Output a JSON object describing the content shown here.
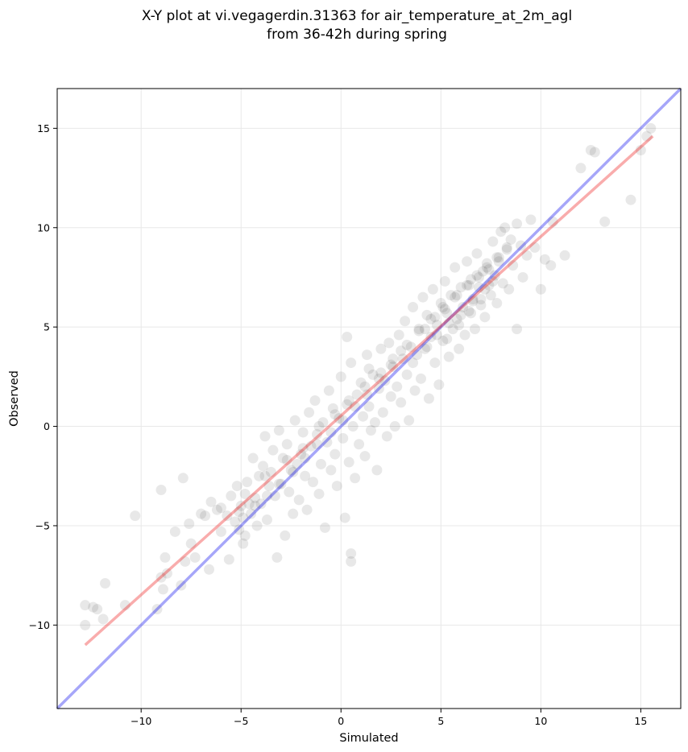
{
  "chart_data": {
    "type": "scatter",
    "title_lines": [
      "X-Y plot at vi.vegagerdin.31363 for air_temperature_at_2m_agl",
      "from 36-42h during spring"
    ],
    "xlabel": "Simulated",
    "ylabel": "Observed",
    "xlim": [
      -14.2,
      17.0
    ],
    "ylim": [
      -14.2,
      17.0
    ],
    "xticks": [
      -10,
      -5,
      0,
      5,
      10,
      15
    ],
    "yticks": [
      -10,
      -5,
      0,
      5,
      10,
      15
    ],
    "xtick_labels": [
      "−10",
      "−5",
      "0",
      "5",
      "10",
      "15"
    ],
    "ytick_labels": [
      "−10",
      "−5",
      "0",
      "5",
      "10",
      "15"
    ],
    "grid": true,
    "colors": {
      "points": "#000000",
      "identity_line": "#0000ee",
      "fit_line": "#ee1111"
    },
    "identity_line": {
      "from": [
        -14.2,
        -14.2
      ],
      "to": [
        17.0,
        17.0
      ]
    },
    "fit_line": {
      "from": [
        -12.8,
        -11.0
      ],
      "to": [
        15.6,
        14.6
      ]
    },
    "points": [
      [
        -12.8,
        -9.0
      ],
      [
        -12.4,
        -9.1
      ],
      [
        -12.2,
        -9.2
      ],
      [
        -11.9,
        -9.7
      ],
      [
        -11.8,
        -7.9
      ],
      [
        -12.8,
        -10.0
      ],
      [
        -10.8,
        -9.0
      ],
      [
        -10.3,
        -4.5
      ],
      [
        -9.2,
        -9.2
      ],
      [
        -9.0,
        -3.2
      ],
      [
        -8.8,
        -6.6
      ],
      [
        -8.7,
        -7.4
      ],
      [
        -9.0,
        -7.6
      ],
      [
        -8.9,
        -8.2
      ],
      [
        -8.3,
        -5.3
      ],
      [
        -8.0,
        -8.0
      ],
      [
        -7.9,
        -2.6
      ],
      [
        -7.8,
        -6.8
      ],
      [
        -7.5,
        -5.9
      ],
      [
        -7.3,
        -6.6
      ],
      [
        -7.0,
        -4.4
      ],
      [
        -6.8,
        -4.5
      ],
      [
        -6.6,
        -7.2
      ],
      [
        -6.5,
        -3.8
      ],
      [
        -6.2,
        -4.2
      ],
      [
        -6.0,
        -5.3
      ],
      [
        -5.7,
        -4.5
      ],
      [
        -5.6,
        -6.7
      ],
      [
        -5.5,
        -3.5
      ],
      [
        -5.3,
        -4.8
      ],
      [
        -5.2,
        -3.0
      ],
      [
        -5.1,
        -5.2
      ],
      [
        -5.0,
        -4.0
      ],
      [
        -4.9,
        -5.9
      ],
      [
        -4.8,
        -3.4
      ],
      [
        -4.7,
        -2.8
      ],
      [
        -4.5,
        -4.4
      ],
      [
        -4.4,
        -1.6
      ],
      [
        -4.3,
        -3.6
      ],
      [
        -4.2,
        -5.0
      ],
      [
        -4.1,
        -2.5
      ],
      [
        -4.0,
        -3.9
      ],
      [
        -3.9,
        -2.0
      ],
      [
        -3.8,
        -0.5
      ],
      [
        -3.7,
        -4.7
      ],
      [
        -3.6,
        -3.0
      ],
      [
        -3.5,
        -2.3
      ],
      [
        -3.4,
        -1.2
      ],
      [
        -3.3,
        -3.5
      ],
      [
        -3.2,
        -6.6
      ],
      [
        -3.1,
        -0.2
      ],
      [
        -3.0,
        -2.9
      ],
      [
        -2.9,
        -1.6
      ],
      [
        -2.8,
        -5.5
      ],
      [
        -2.7,
        -0.9
      ],
      [
        -2.6,
        -3.3
      ],
      [
        -2.5,
        -2.2
      ],
      [
        -2.4,
        -4.4
      ],
      [
        -2.3,
        0.3
      ],
      [
        -2.2,
        -1.9
      ],
      [
        -2.1,
        -3.7
      ],
      [
        -2.0,
        -1.4
      ],
      [
        -1.9,
        -0.3
      ],
      [
        -1.8,
        -2.5
      ],
      [
        -1.7,
        -4.2
      ],
      [
        -1.6,
        0.7
      ],
      [
        -1.5,
        -1.0
      ],
      [
        -1.4,
        -2.8
      ],
      [
        -1.3,
        1.3
      ],
      [
        -1.2,
        -0.4
      ],
      [
        -1.1,
        -3.4
      ],
      [
        -1.0,
        -1.9
      ],
      [
        -0.9,
        0.2
      ],
      [
        -0.8,
        -5.1
      ],
      [
        -0.7,
        -0.8
      ],
      [
        -0.6,
        1.8
      ],
      [
        -0.5,
        -2.2
      ],
      [
        -0.4,
        0.9
      ],
      [
        -0.3,
        -1.4
      ],
      [
        -0.2,
        -3.0
      ],
      [
        -0.1,
        0.4
      ],
      [
        0.0,
        2.5
      ],
      [
        0.1,
        -0.6
      ],
      [
        0.2,
        -4.6
      ],
      [
        0.3,
        1.1
      ],
      [
        0.4,
        -1.8
      ],
      [
        0.5,
        3.2
      ],
      [
        0.6,
        0.0
      ],
      [
        0.7,
        -2.6
      ],
      [
        0.8,
        1.6
      ],
      [
        0.9,
        -0.9
      ],
      [
        1.0,
        2.2
      ],
      [
        1.1,
        0.5
      ],
      [
        1.2,
        -1.5
      ],
      [
        1.3,
        3.6
      ],
      [
        1.4,
        1.0
      ],
      [
        1.5,
        -0.2
      ],
      [
        1.6,
        2.6
      ],
      [
        1.7,
        0.2
      ],
      [
        1.8,
        -2.2
      ],
      [
        1.9,
        1.9
      ],
      [
        2.0,
        3.9
      ],
      [
        2.1,
        0.7
      ],
      [
        2.2,
        2.3
      ],
      [
        2.3,
        -0.5
      ],
      [
        2.4,
        4.2
      ],
      [
        2.5,
        1.5
      ],
      [
        2.6,
        3.0
      ],
      [
        2.7,
        0.0
      ],
      [
        2.8,
        2.0
      ],
      [
        2.9,
        4.6
      ],
      [
        3.0,
        1.2
      ],
      [
        3.1,
        3.4
      ],
      [
        3.2,
        5.3
      ],
      [
        3.3,
        2.6
      ],
      [
        3.4,
        0.3
      ],
      [
        3.5,
        4.0
      ],
      [
        3.6,
        6.0
      ],
      [
        3.7,
        1.8
      ],
      [
        3.8,
        3.6
      ],
      [
        3.9,
        4.9
      ],
      [
        4.0,
        2.4
      ],
      [
        4.1,
        6.5
      ],
      [
        4.2,
        3.9
      ],
      [
        4.3,
        5.6
      ],
      [
        4.4,
        1.4
      ],
      [
        4.5,
        4.5
      ],
      [
        4.6,
        6.9
      ],
      [
        4.7,
        3.2
      ],
      [
        4.8,
        5.1
      ],
      [
        4.9,
        2.1
      ],
      [
        5.0,
        6.2
      ],
      [
        5.1,
        4.3
      ],
      [
        5.2,
        7.3
      ],
      [
        5.3,
        5.7
      ],
      [
        5.4,
        3.5
      ],
      [
        5.5,
        6.6
      ],
      [
        5.6,
        4.9
      ],
      [
        5.7,
        8.0
      ],
      [
        5.8,
        5.4
      ],
      [
        5.9,
        3.9
      ],
      [
        6.0,
        7.0
      ],
      [
        6.1,
        6.0
      ],
      [
        6.2,
        4.6
      ],
      [
        6.3,
        8.3
      ],
      [
        6.4,
        5.8
      ],
      [
        6.5,
        7.4
      ],
      [
        6.6,
        6.4
      ],
      [
        6.7,
        4.9
      ],
      [
        6.8,
        8.7
      ],
      [
        6.9,
        7.0
      ],
      [
        7.0,
        6.1
      ],
      [
        7.1,
        7.8
      ],
      [
        7.2,
        5.5
      ],
      [
        7.3,
        8.2
      ],
      [
        7.4,
        7.1
      ],
      [
        7.5,
        6.6
      ],
      [
        7.6,
        9.3
      ],
      [
        7.7,
        7.6
      ],
      [
        7.8,
        6.2
      ],
      [
        7.9,
        8.5
      ],
      [
        8.0,
        9.8
      ],
      [
        8.1,
        7.2
      ],
      [
        8.2,
        10.0
      ],
      [
        8.3,
        8.9
      ],
      [
        8.4,
        6.9
      ],
      [
        8.5,
        9.4
      ],
      [
        8.6,
        8.1
      ],
      [
        8.8,
        10.2
      ],
      [
        8.8,
        4.9
      ],
      [
        9.0,
        9.1
      ],
      [
        9.1,
        7.5
      ],
      [
        9.3,
        8.6
      ],
      [
        9.5,
        10.4
      ],
      [
        9.7,
        9.0
      ],
      [
        10.0,
        6.9
      ],
      [
        10.2,
        8.4
      ],
      [
        10.5,
        8.1
      ],
      [
        10.6,
        10.3
      ],
      [
        11.2,
        8.6
      ],
      [
        12.0,
        13.0
      ],
      [
        12.5,
        13.9
      ],
      [
        12.7,
        13.8
      ],
      [
        13.2,
        10.3
      ],
      [
        14.5,
        11.4
      ],
      [
        15.0,
        13.9
      ],
      [
        15.3,
        14.6
      ],
      [
        15.5,
        15.0
      ],
      [
        1.4,
        2.9
      ],
      [
        0.3,
        4.5
      ],
      [
        0.5,
        -6.8
      ],
      [
        0.5,
        -6.4
      ],
      [
        -4.8,
        -5.5
      ],
      [
        -6.0,
        -4.1
      ],
      [
        -7.6,
        -4.9
      ],
      [
        -5.1,
        -4.3
      ],
      [
        -4.6,
        -3.9
      ],
      [
        -3.8,
        -2.5
      ],
      [
        -2.7,
        -1.7
      ],
      [
        -1.9,
        -1.1
      ],
      [
        -1.1,
        0.0
      ],
      [
        -0.3,
        0.6
      ],
      [
        0.4,
        1.3
      ],
      [
        1.2,
        2.0
      ],
      [
        2.0,
        2.7
      ],
      [
        2.6,
        3.4
      ],
      [
        3.3,
        4.1
      ],
      [
        3.9,
        4.8
      ],
      [
        4.5,
        5.4
      ],
      [
        5.1,
        6.0
      ],
      [
        5.7,
        6.5
      ],
      [
        6.3,
        7.1
      ],
      [
        6.8,
        7.6
      ],
      [
        7.3,
        8.0
      ],
      [
        7.8,
        8.5
      ],
      [
        8.3,
        9.0
      ],
      [
        3.6,
        3.2
      ],
      [
        4.3,
        4.0
      ],
      [
        4.8,
        4.6
      ],
      [
        5.4,
        5.2
      ],
      [
        6.0,
        5.6
      ],
      [
        6.6,
        6.3
      ],
      [
        7.2,
        6.9
      ],
      [
        7.6,
        7.3
      ],
      [
        5.3,
        4.4
      ],
      [
        5.9,
        5.1
      ],
      [
        6.5,
        5.7
      ],
      [
        7.0,
        6.4
      ],
      [
        4.2,
        4.9
      ],
      [
        4.7,
        5.5
      ],
      [
        5.2,
        5.9
      ],
      [
        5.8,
        6.6
      ],
      [
        6.4,
        7.1
      ],
      [
        6.9,
        7.5
      ],
      [
        7.4,
        7.9
      ],
      [
        7.9,
        8.3
      ],
      [
        3.0,
        3.8
      ],
      [
        2.5,
        3.1
      ],
      [
        1.9,
        2.4
      ],
      [
        1.3,
        1.6
      ],
      [
        0.7,
        1.0
      ],
      [
        0.1,
        0.3
      ],
      [
        -0.5,
        -0.3
      ],
      [
        -1.2,
        -0.9
      ],
      [
        -1.8,
        -1.6
      ],
      [
        -2.4,
        -2.3
      ],
      [
        -3.1,
        -2.9
      ],
      [
        -3.7,
        -3.5
      ],
      [
        -4.3,
        -4.0
      ],
      [
        -4.9,
        -4.6
      ]
    ]
  }
}
